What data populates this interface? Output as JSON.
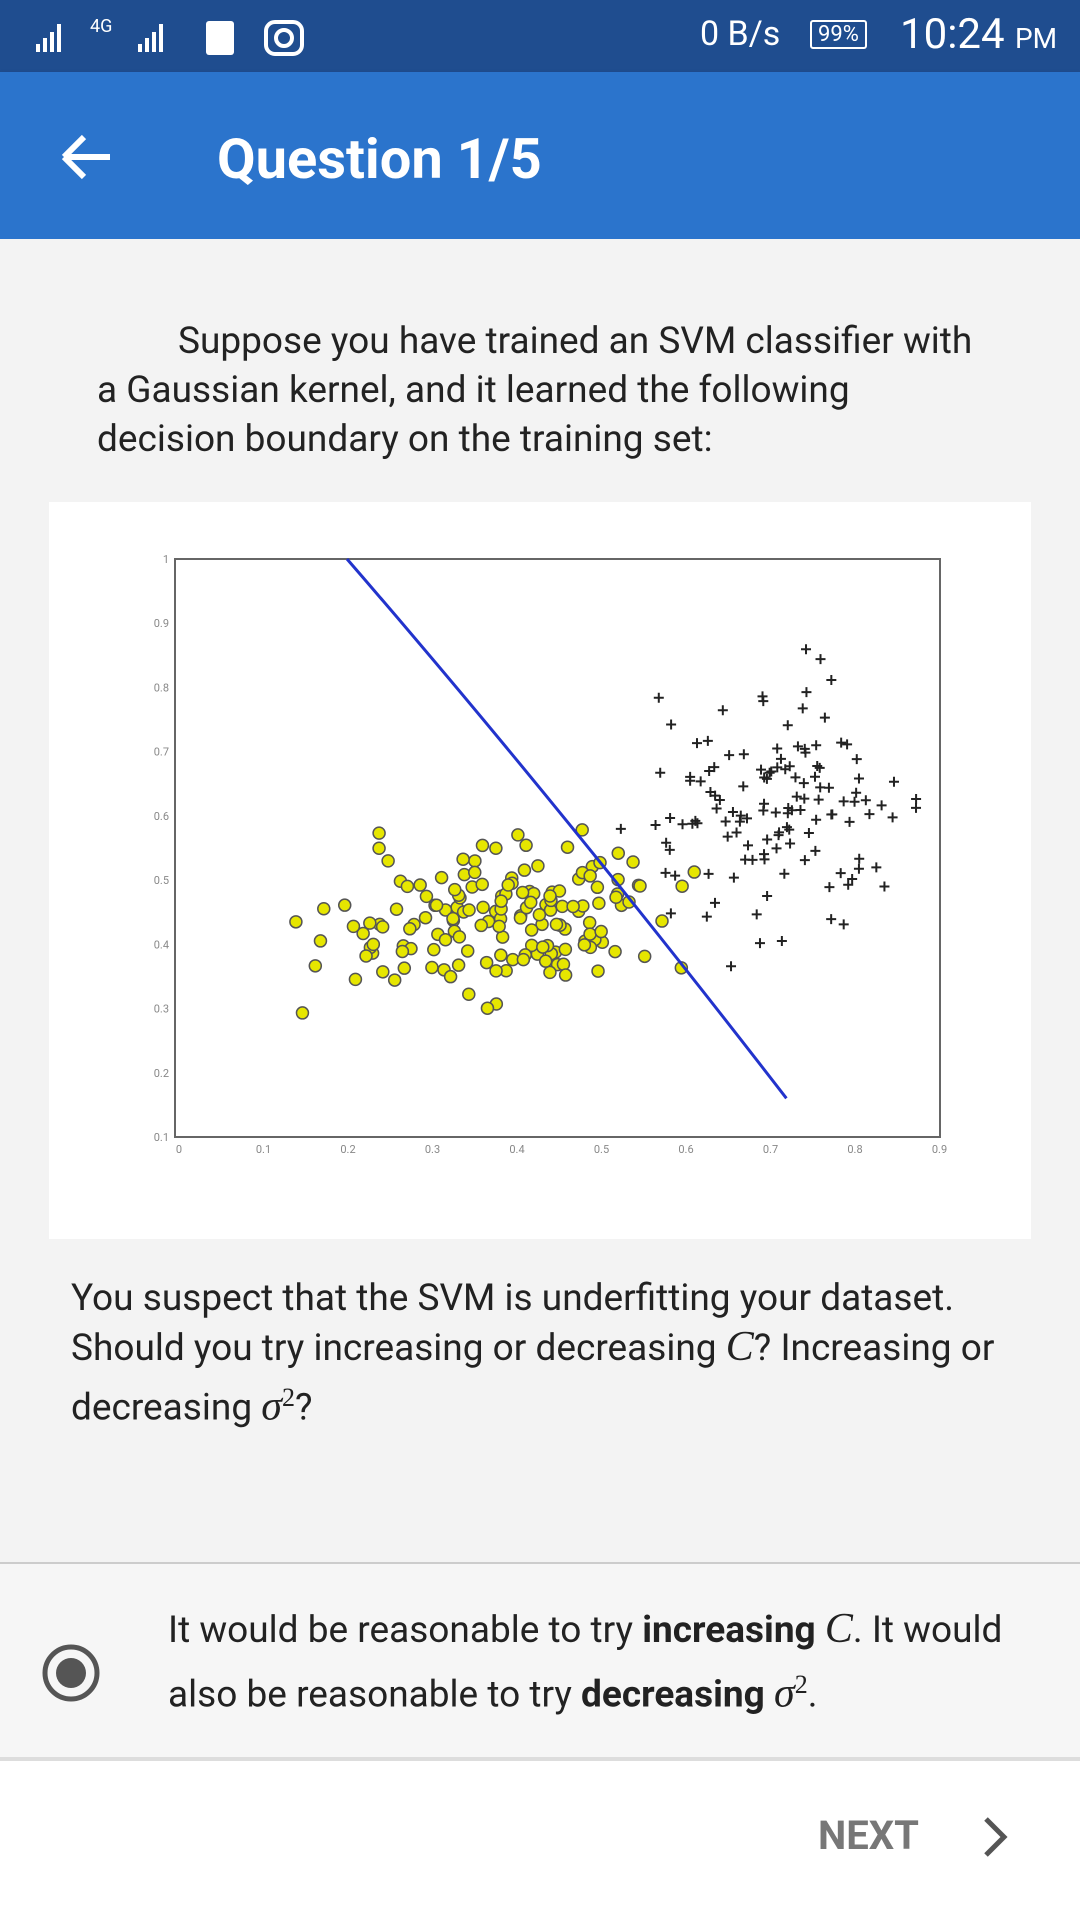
{
  "status_bar": {
    "network": "4G",
    "speed": "0 B/s",
    "battery": "99%",
    "time": "10:24",
    "ampm": "PM"
  },
  "app_bar": {
    "title": "Question 1/5"
  },
  "question": {
    "intro": "Suppose you have trained an SVM classifier with a Gaussian kernel, and it learned the following decision boundary on the training set:",
    "plot": {
      "yticks": [
        "1",
        "0.9",
        "0.8",
        "0.7",
        "0.6",
        "0.5",
        "0.4",
        "0.3",
        "0.2",
        "0.1"
      ],
      "xticks": [
        "0",
        "0.1",
        "0.2",
        "0.3",
        "0.4",
        "0.5",
        "0.6",
        "0.7",
        "0.8",
        "0.9"
      ]
    },
    "text_parts": [
      "You suspect that the SVM is underfitting your dataset. Should you try increasing or decreasing ",
      "C",
      "? Increasing or decreasing ",
      "σ",
      "2",
      "?"
    ]
  },
  "option": {
    "parts": [
      "It would be reasonable to try ",
      "increasing",
      "C",
      ". It would also be reasonable to try ",
      "decreasing",
      "σ",
      "2",
      "."
    ]
  },
  "footer": {
    "next": "NEXT"
  }
}
